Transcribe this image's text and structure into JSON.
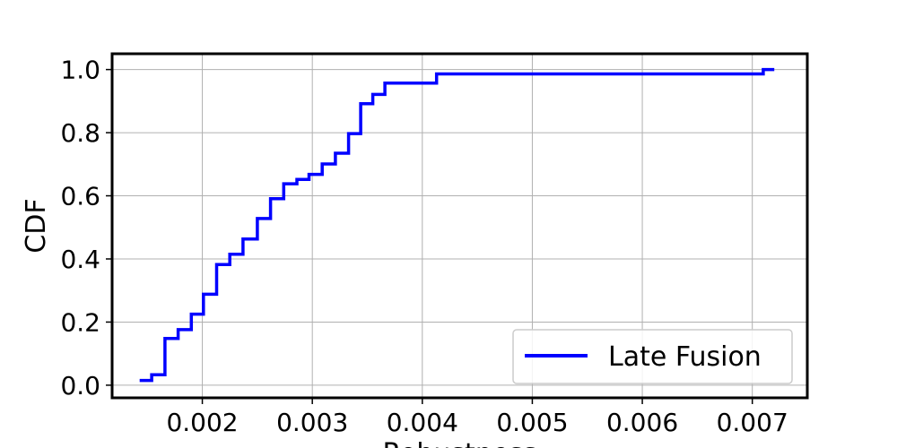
{
  "chart_data": {
    "type": "line",
    "title": "",
    "xlabel": "Robustness",
    "ylabel": "CDF",
    "xlim": [
      0.00118,
      0.0075
    ],
    "ylim": [
      -0.04,
      1.05
    ],
    "xticks": [
      0.002,
      0.003,
      0.004,
      0.005,
      0.006,
      0.007
    ],
    "xtick_labels": [
      "0.002",
      "0.003",
      "0.004",
      "0.005",
      "0.006",
      "0.007"
    ],
    "yticks": [
      0.0,
      0.2,
      0.4,
      0.6,
      0.8,
      1.0
    ],
    "ytick_labels": [
      "0.0",
      "0.2",
      "0.4",
      "0.6",
      "0.8",
      "1.0"
    ],
    "grid": true,
    "legend_position": "lower-right",
    "series": [
      {
        "name": "Late Fusion",
        "color": "#0000ff",
        "step": true,
        "x": [
          0.00143,
          0.00154,
          0.00166,
          0.00178,
          0.0019,
          0.00201,
          0.00213,
          0.00225,
          0.00237,
          0.0025,
          0.00262,
          0.00274,
          0.00286,
          0.00297,
          0.00309,
          0.00321,
          0.00333,
          0.00344,
          0.00355,
          0.00366,
          0.00413,
          0.0071,
          0.0072
        ],
        "y": [
          0.015,
          0.033,
          0.148,
          0.176,
          0.225,
          0.288,
          0.382,
          0.415,
          0.463,
          0.528,
          0.591,
          0.638,
          0.652,
          0.668,
          0.701,
          0.735,
          0.797,
          0.892,
          0.921,
          0.957,
          0.986,
          1.0,
          1.0
        ]
      }
    ]
  }
}
